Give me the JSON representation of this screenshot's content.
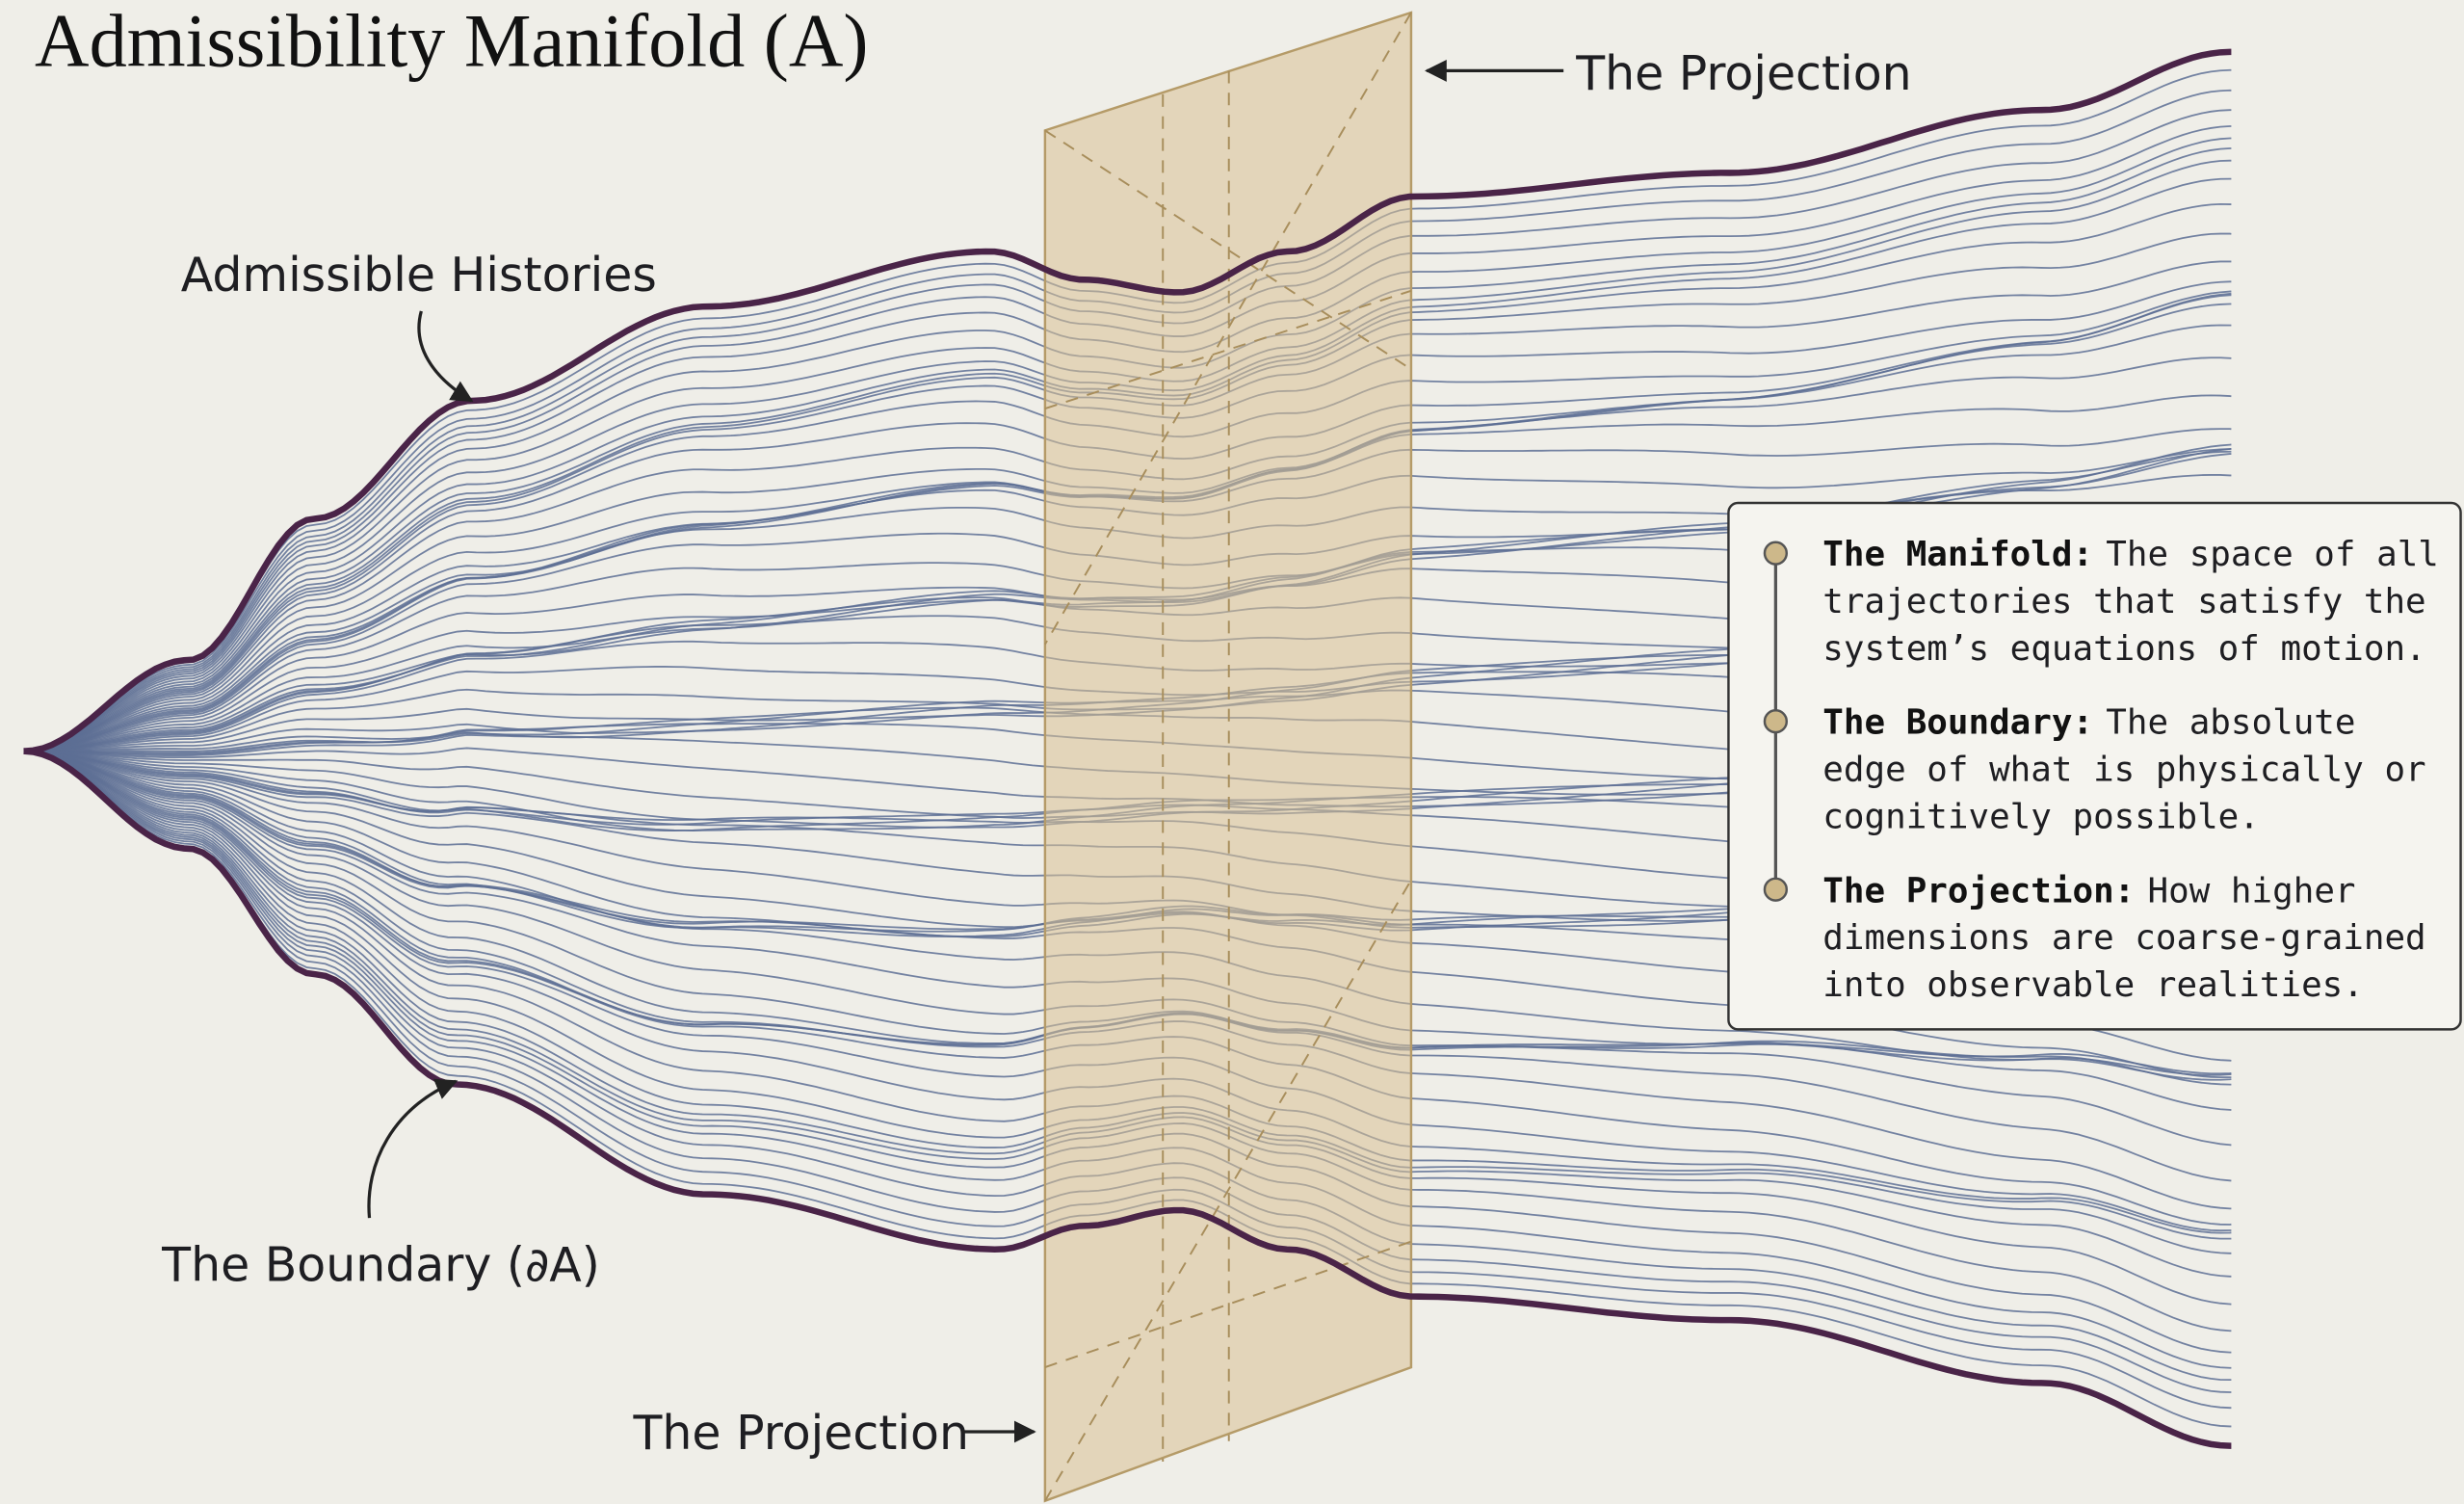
{
  "title": "Admissibility Manifold (A)",
  "labels": {
    "projection_top": "The Projection",
    "histories": "Admissible Histories",
    "boundary": "The Boundary (∂A)",
    "projection_bottom": "The Projection"
  },
  "legend": [
    {
      "term": "The Manifold:",
      "lines": [
        "The space of all",
        "trajectories that satisfy the",
        "system’s equations of motion."
      ]
    },
    {
      "term": "The Boundary:",
      "lines": [
        "The absolute",
        "edge of what is physically or",
        "cognitively possible."
      ]
    },
    {
      "term": "The Projection:",
      "lines": [
        "How higher",
        "dimensions are coarse-grained",
        "into observable realities."
      ]
    }
  ]
}
